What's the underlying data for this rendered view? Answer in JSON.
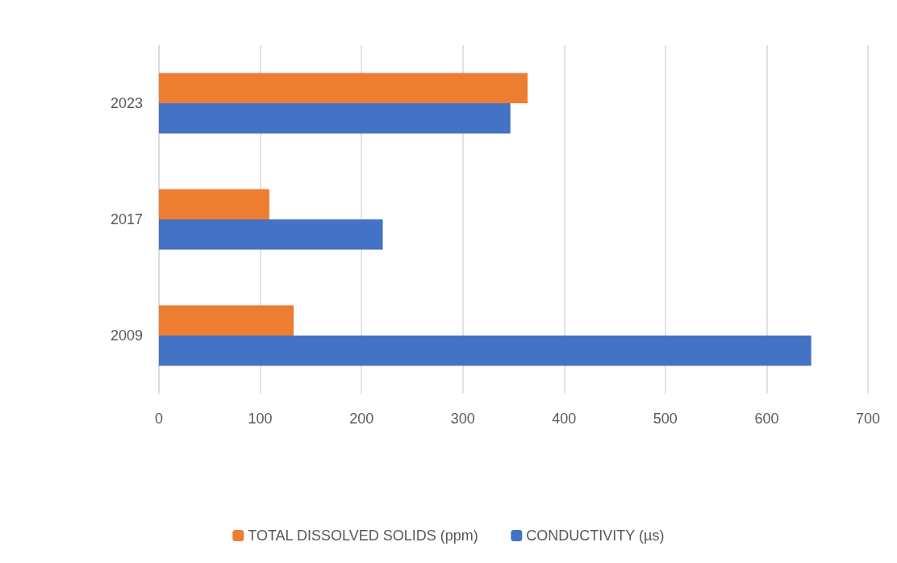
{
  "chart_data": {
    "type": "bar",
    "orientation": "horizontal",
    "categories": [
      "2023",
      "2017",
      "2009"
    ],
    "series": [
      {
        "name": "TOTAL DISSOLVED SOLIDS (ppm)",
        "color": "#ed7d31",
        "values": [
          364,
          109,
          133
        ]
      },
      {
        "name": "CONDUCTIVITY (µs)",
        "color": "#4472c4",
        "values": [
          347,
          221,
          644
        ]
      }
    ],
    "xlim": [
      0,
      700
    ],
    "xticks": [
      0,
      100,
      200,
      300,
      400,
      500,
      600,
      700
    ],
    "grid": "x",
    "legend": "bottom"
  }
}
